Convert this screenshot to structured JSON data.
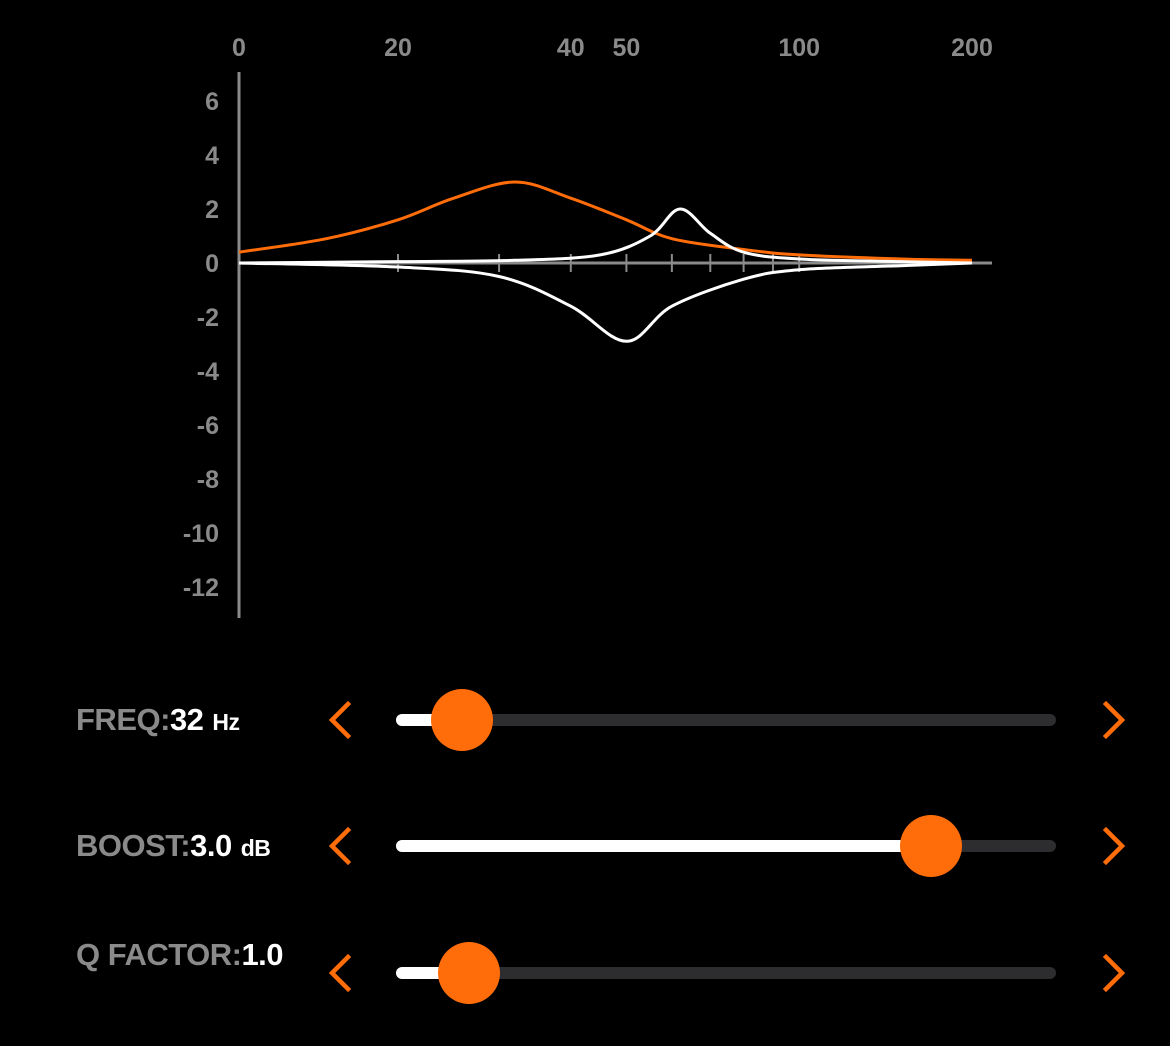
{
  "colors": {
    "accent": "#ff6d0a",
    "curve_secondary": "#ffffff",
    "axis": "#8a8a8a",
    "track": "#2d2d30",
    "background": "#000000"
  },
  "chart_data": {
    "type": "line",
    "x_scale": "log",
    "x_ticks": [
      "0",
      "20",
      "40",
      "50",
      "100",
      "200"
    ],
    "y_ticks": [
      "6",
      "4",
      "2",
      "0",
      "-2",
      "-4",
      "-6",
      "-8",
      "-10",
      "-12"
    ],
    "ylim": [
      -13,
      7
    ],
    "series": [
      {
        "color": "#ff6d0a",
        "x": [
          10,
          15,
          20,
          25,
          32,
          40,
          50,
          60,
          80,
          100,
          150,
          200
        ],
        "y": [
          0.4,
          0.9,
          1.6,
          2.4,
          3.0,
          2.4,
          1.6,
          0.9,
          0.5,
          0.3,
          0.15,
          0.1
        ]
      },
      {
        "color": "#ffffff",
        "x": [
          10,
          20,
          32,
          45,
          55,
          62,
          70,
          80,
          100,
          150,
          200
        ],
        "y": [
          0.0,
          0.05,
          0.1,
          0.3,
          1.0,
          2.0,
          1.1,
          0.4,
          0.15,
          0.05,
          0.0
        ]
      },
      {
        "color": "#ffffff",
        "x": [
          10,
          20,
          30,
          40,
          50,
          60,
          80,
          100,
          150,
          200
        ],
        "y": [
          0.0,
          -0.15,
          -0.5,
          -1.6,
          -2.9,
          -1.6,
          -0.6,
          -0.25,
          -0.1,
          0.0
        ]
      }
    ]
  },
  "controls": {
    "freq": {
      "name": "FREQ:",
      "value": "32",
      "unit": "Hz",
      "level": 0.1
    },
    "boost": {
      "name": "BOOST:",
      "value": "3.0",
      "unit": "dB",
      "level": 0.81
    },
    "q": {
      "name": "Q FACTOR:",
      "value": "1.0",
      "unit": "",
      "level": 0.11
    }
  },
  "icons": {
    "decrease": "chevron-left-icon",
    "increase": "chevron-right-icon"
  }
}
